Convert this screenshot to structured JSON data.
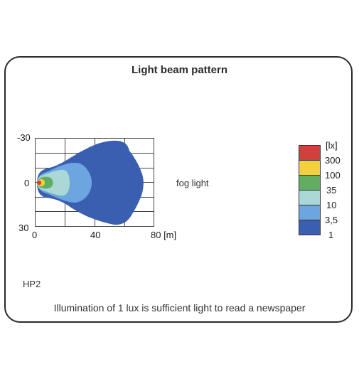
{
  "title": "Light beam pattern",
  "beam_label": "fog light",
  "model_code": "HP2",
  "caption": "Illumination of 1 lux is sufficient light to read a newspaper",
  "axes": {
    "y_ticks": [
      "-30",
      "0",
      "30"
    ],
    "x_ticks": [
      "0",
      "40",
      "80 [m]"
    ]
  },
  "legend": {
    "unit": "[lx]",
    "items": [
      {
        "label": "300",
        "color": "#d0403c"
      },
      {
        "label": "100",
        "color": "#f2d03e"
      },
      {
        "label": "35",
        "color": "#62ad64"
      },
      {
        "label": "10",
        "color": "#a9d8d6"
      },
      {
        "label": "3,5",
        "color": "#6da5e0"
      },
      {
        "label": "1",
        "color": "#3a5fb0"
      }
    ]
  },
  "colors": {
    "lux_1": "#3a5fb0",
    "lux_3_5": "#6da5e0",
    "lux_10": "#a9d8d6",
    "lux_35": "#62ad64",
    "lux_100": "#f2d03e",
    "lux_300": "#d0403c",
    "border": "#2a2a2a"
  }
}
